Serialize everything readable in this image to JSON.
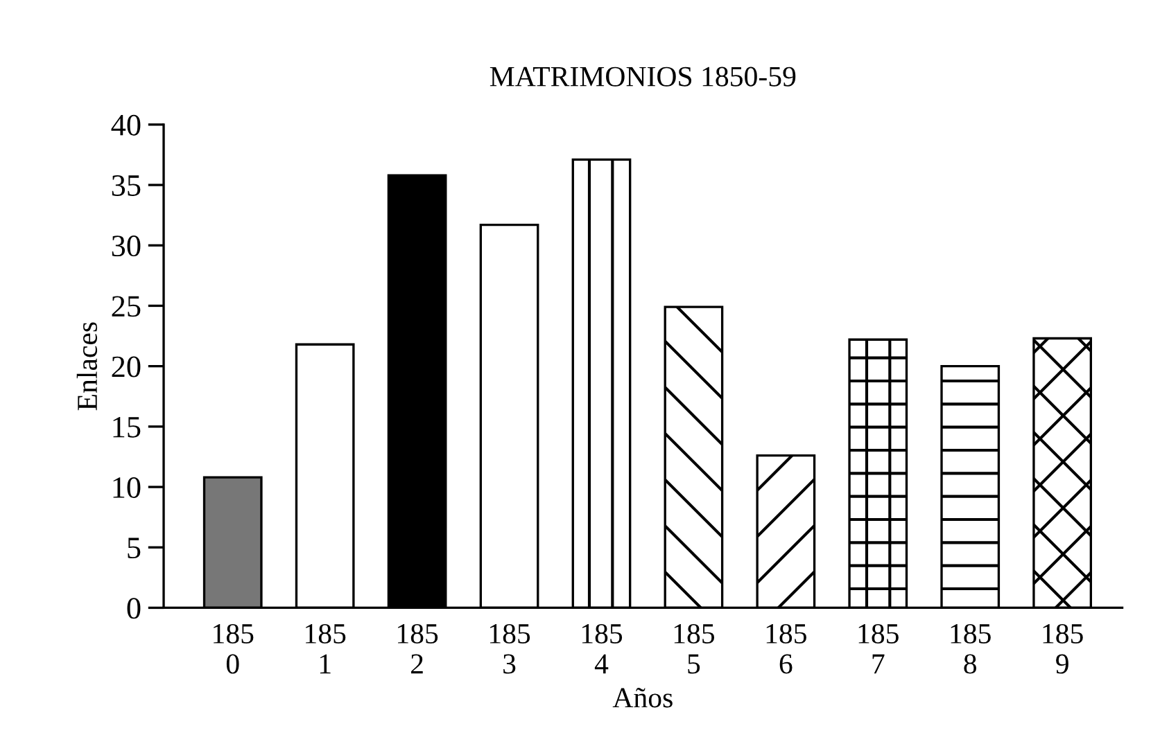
{
  "chart_data": {
    "type": "bar",
    "title": "MATRIMONIOS 1850-59",
    "xlabel": "Años",
    "ylabel": "Enlaces",
    "categories": [
      "185\n0",
      "185\n1",
      "185\n2",
      "185\n3",
      "185\n4",
      "185\n5",
      "185\n6",
      "185\n7",
      "185\n8",
      "185\n9"
    ],
    "values": [
      10.8,
      21.8,
      35.8,
      31.7,
      37.1,
      24.9,
      12.6,
      22.2,
      20,
      22.3
    ],
    "colors": [
      "#777777",
      "#ffffff",
      "#000000",
      "#ffffff",
      "#ffffff",
      "#ffffff",
      "#ffffff",
      "#ffffff",
      "#ffffff",
      "#ffffff"
    ],
    "ylim": [
      0,
      40
    ],
    "yticks": [
      0,
      5,
      10,
      15,
      20,
      25,
      30,
      35,
      40
    ],
    "grid": false
  }
}
